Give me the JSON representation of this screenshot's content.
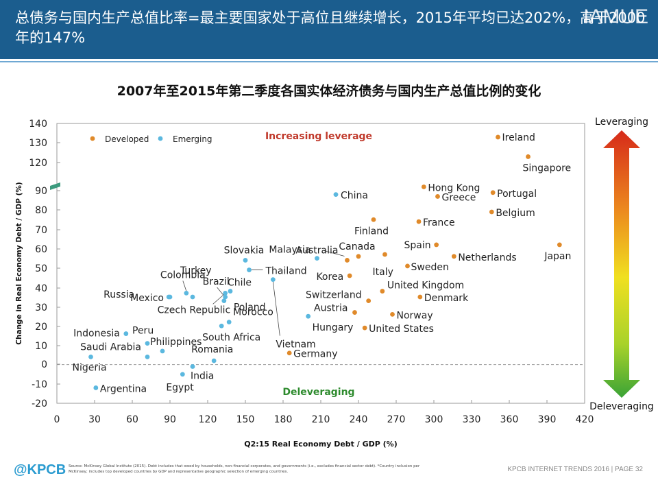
{
  "header": {
    "title": "总债务与国内生产总值比率=最主要国家处于高位且继续增长，2015年平均已达202%，高于2000年的147%",
    "brand": "IAMUE"
  },
  "chart_data": {
    "type": "scatter",
    "title": "2007年至2015年第二季度各国实体经济债务与国内生产总值比例的变化",
    "xlabel": "Q2:15 Real Economy Debt / GDP (%)",
    "ylabel": "Change in Real Economy Debt / GDP (%)",
    "xlim": [
      0,
      420
    ],
    "ylim": [
      -20,
      140
    ],
    "xticks": [
      "0",
      "30",
      "60",
      "90",
      "120",
      "150",
      "180",
      "210",
      "240",
      "270",
      "300",
      "330",
      "360",
      "390",
      "420"
    ],
    "yticks": [
      "140",
      "130",
      "120",
      "90",
      "80",
      "70",
      "60",
      "50",
      "40",
      "30",
      "20",
      "10",
      "0",
      "-10",
      "-20"
    ],
    "y_axis_break": "between 90 and 120",
    "grid": false,
    "legend": {
      "position": "top-left",
      "items": [
        "Developed",
        "Emerging"
      ]
    },
    "annotations": {
      "top": "Increasing leverage",
      "bottom": "Deleveraging",
      "arrow_top": "Leveraging",
      "arrow_bottom": "Deleveraging"
    },
    "colors": {
      "Developed": "#e08a2a",
      "Emerging": "#5bb8df",
      "arrow_top": "#d62a1a",
      "arrow_bottom": "#3aa336"
    },
    "series": [
      {
        "name": "Developed",
        "points": [
          {
            "label": "Ireland",
            "x": 351,
            "y": 133
          },
          {
            "label": "Singapore",
            "x": 375,
            "y": 123
          },
          {
            "label": "Hong Kong",
            "x": 292,
            "y": 94
          },
          {
            "label": "Portugal",
            "x": 347,
            "y": 89
          },
          {
            "label": "Greece",
            "x": 303,
            "y": 87
          },
          {
            "label": "Belgium",
            "x": 346,
            "y": 79
          },
          {
            "label": "Finland",
            "x": 252,
            "y": 75
          },
          {
            "label": "France",
            "x": 288,
            "y": 74
          },
          {
            "label": "Spain",
            "x": 302,
            "y": 62
          },
          {
            "label": "Japan",
            "x": 400,
            "y": 62
          },
          {
            "label": "Canada",
            "x": 240,
            "y": 56
          },
          {
            "label": "Netherlands",
            "x": 316,
            "y": 56
          },
          {
            "label": "Australia",
            "x": 231,
            "y": 54
          },
          {
            "label": "Italy",
            "x": 261,
            "y": 57
          },
          {
            "label": "Sweden",
            "x": 279,
            "y": 51
          },
          {
            "label": "Korea",
            "x": 233,
            "y": 46
          },
          {
            "label": "United Kingdom",
            "x": 259,
            "y": 38
          },
          {
            "label": "Switzerland",
            "x": 248,
            "y": 33
          },
          {
            "label": "Denmark",
            "x": 289,
            "y": 35
          },
          {
            "label": "Austria",
            "x": 237,
            "y": 27
          },
          {
            "label": "Norway",
            "x": 267,
            "y": 26
          },
          {
            "label": "United States",
            "x": 245,
            "y": 19
          },
          {
            "label": "Germany",
            "x": 185,
            "y": 6
          }
        ]
      },
      {
        "name": "Emerging",
        "points": [
          {
            "label": "China",
            "x": 222,
            "y": 88
          },
          {
            "label": "Malaysia",
            "x": 207,
            "y": 55
          },
          {
            "label": "Slovakia",
            "x": 150,
            "y": 54
          },
          {
            "label": "Thailand",
            "x": 153,
            "y": 49
          },
          {
            "label": "Colombia",
            "x": 103,
            "y": 37
          },
          {
            "label": "Turkey",
            "x": 108,
            "y": 35
          },
          {
            "label": "Russia",
            "x": 89,
            "y": 35
          },
          {
            "label": "Mexico",
            "x": 90,
            "y": 35
          },
          {
            "label": "Brazil",
            "x": 134,
            "y": 35
          },
          {
            "label": "Chile",
            "x": 138,
            "y": 38
          },
          {
            "label": "Czech Republic",
            "x": 134,
            "y": 37
          },
          {
            "label": "Poland",
            "x": 133,
            "y": 33
          },
          {
            "label": "Hungary",
            "x": 200,
            "y": 25
          },
          {
            "label": "Morocco",
            "x": 137,
            "y": 22
          },
          {
            "label": "South Africa",
            "x": 131,
            "y": 20
          },
          {
            "label": "Vietnam",
            "x": 172,
            "y": 44
          },
          {
            "label": "Indonesia",
            "x": 55,
            "y": 16
          },
          {
            "label": "Peru",
            "x": 72,
            "y": 11
          },
          {
            "label": "Saudi Arabia",
            "x": 72,
            "y": 4
          },
          {
            "label": "Philippines",
            "x": 84,
            "y": 7
          },
          {
            "label": "Romania",
            "x": 125,
            "y": 2
          },
          {
            "label": "Nigeria",
            "x": 27,
            "y": 4
          },
          {
            "label": "India",
            "x": 108,
            "y": -1
          },
          {
            "label": "Egypt",
            "x": 100,
            "y": -5
          },
          {
            "label": "Argentina",
            "x": 31,
            "y": -12
          }
        ]
      }
    ]
  },
  "footer": {
    "logo": "@KPCB",
    "source": "Source: McKinsey Global Institute (2015). Debt includes that owed by households, non-financial corporates, and governments (i.e., excludes financial sector debt). *Country inclusion per McKinsey; includes top developed countries by GDP and representative geographic selection of emerging countries.",
    "right": "KPCB INTERNET TRENDS 2016  |  PAGE 32"
  }
}
